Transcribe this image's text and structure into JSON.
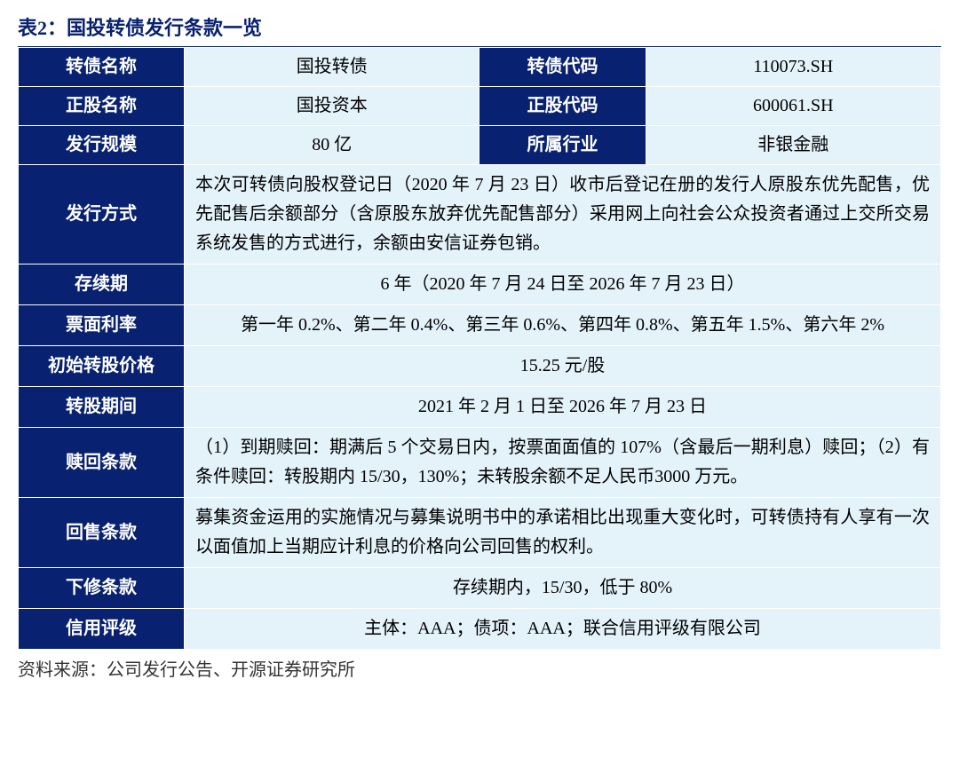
{
  "title": "表2：国投转债发行条款一览",
  "colors": {
    "header_bg": "#082170",
    "header_text": "#ffffff",
    "light_bg": "#e4f2fa",
    "title_color": "#082170",
    "border_color": "#ffffff"
  },
  "top_rows": [
    {
      "k1": "转债名称",
      "v1": "国投转债",
      "k2": "转债代码",
      "v2": "110073.SH"
    },
    {
      "k1": "正股名称",
      "v1": "国投资本",
      "k2": "正股代码",
      "v2": "600061.SH"
    },
    {
      "k1": "发行规模",
      "v1": "80 亿",
      "k2": "所属行业",
      "v2": "非银金融"
    }
  ],
  "detail_rows": [
    {
      "label": "发行方式",
      "value": "本次可转债向股权登记日（2020 年 7 月 23 日）收市后登记在册的发行人原股东优先配售，优先配售后余额部分（含原股东放弃优先配售部分）采用网上向社会公众投资者通过上交所交易系统发售的方式进行，余额由安信证券包销。",
      "align": "just"
    },
    {
      "label": "存续期",
      "value": "6 年（2020 年 7 月 24 日至 2026 年 7 月 23 日）",
      "align": "center"
    },
    {
      "label": "票面利率",
      "value": "第一年 0.2%、第二年 0.4%、第三年 0.6%、第四年 0.8%、第五年 1.5%、第六年 2%",
      "align": "center"
    },
    {
      "label": "初始转股价格",
      "value": "15.25 元/股",
      "align": "center"
    },
    {
      "label": "转股期间",
      "value": "2021 年 2 月 1 日至 2026 年 7 月 23 日",
      "align": "center"
    },
    {
      "label": "赎回条款",
      "value": "（1）到期赎回：期满后 5 个交易日内，按票面面值的 107%（含最后一期利息）赎回；（2）有条件赎回：转股期内 15/30，130%；未转股余额不足人民币3000 万元。",
      "align": "just"
    },
    {
      "label": "回售条款",
      "value": "募集资金运用的实施情况与募集说明书中的承诺相比出现重大变化时，可转债持有人享有一次以面值加上当期应计利息的价格向公司回售的权利。",
      "align": "just"
    },
    {
      "label": "下修条款",
      "value": "存续期内，15/30，低于 80%",
      "align": "center"
    },
    {
      "label": "信用评级",
      "value": "主体：AAA；债项：AAA；联合信用评级有限公司",
      "align": "center"
    }
  ],
  "source": "资料来源：公司发行公告、开源证券研究所",
  "col_widths_pct": [
    18,
    32,
    18,
    32
  ]
}
